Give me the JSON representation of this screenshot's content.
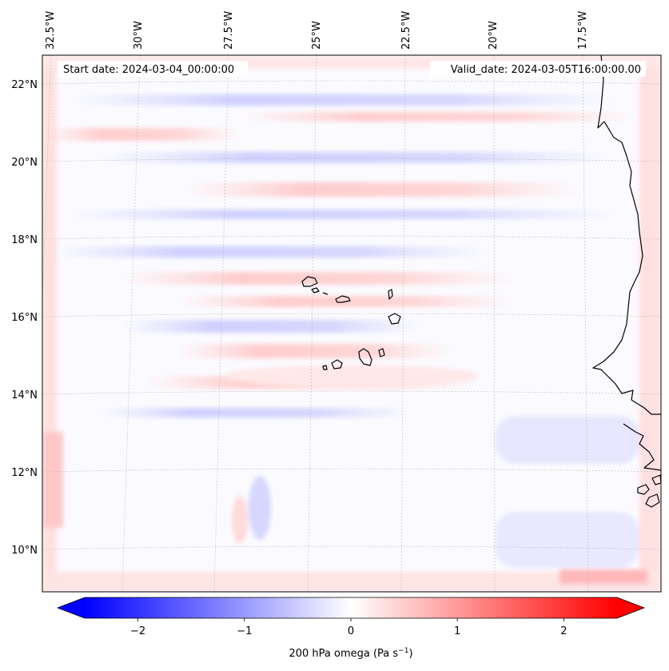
{
  "map": {
    "start_date": "Start date: 2024-03-04_00:00:00",
    "valid_date": "Valid_date: 2024-03-05T16:00:00.00",
    "lon_labels": [
      "32.5°W",
      "30°W",
      "27.5°W",
      "25°W",
      "22.5°W",
      "20°W",
      "17.5°W"
    ],
    "lat_labels": [
      "22°N",
      "20°N",
      "18°N",
      "16°N",
      "14°N",
      "12°N",
      "10°N"
    ],
    "field": "200 hPa omega",
    "colormap": "bwr",
    "color_low": "#0000ff",
    "color_mid": "#ffffff",
    "color_high": "#ff0000",
    "coastline_color": "#000000",
    "gridlines": true,
    "region": "Cape Verde islands and West African coast"
  },
  "colorbar": {
    "label": "200 hPa omega (Pa s",
    "label_sup": "−1",
    "label_end": ")",
    "ticks": [
      "−2",
      "−1",
      "0",
      "1",
      "2"
    ],
    "tick_values": [
      -2,
      -1,
      0,
      1,
      2
    ],
    "range": [
      -2.5,
      2.5
    ],
    "extend": "both"
  }
}
